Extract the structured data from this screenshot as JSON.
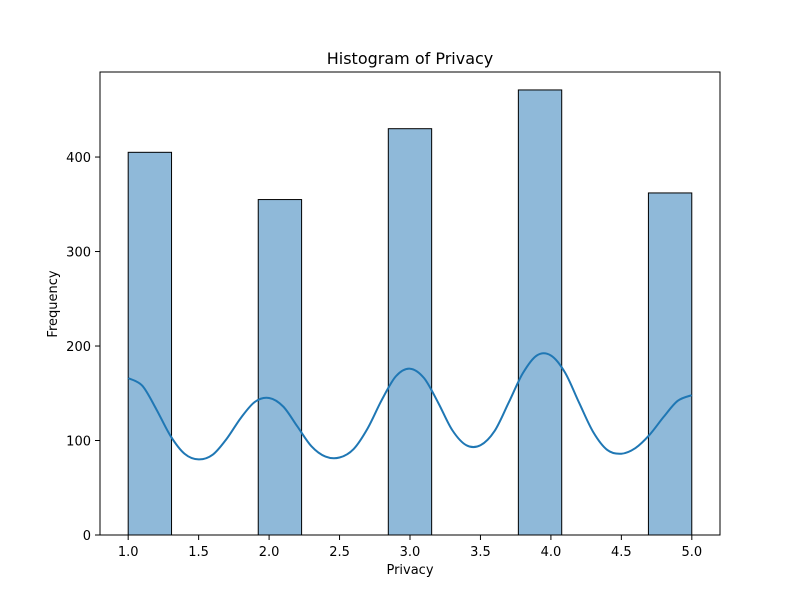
{
  "chart_data": {
    "type": "bar",
    "title": "Histogram of Privacy",
    "xlabel": "Privacy",
    "ylabel": "Frequency",
    "xlim": [
      0.8,
      5.2
    ],
    "ylim": [
      0,
      490
    ],
    "xticks": [
      "1.0",
      "1.5",
      "2.0",
      "2.5",
      "3.0",
      "3.5",
      "4.0",
      "4.5",
      "5.0"
    ],
    "yticks": [
      "0",
      "100",
      "200",
      "300",
      "400"
    ],
    "bin_width": 0.3077,
    "bins": [
      {
        "start": 1.0,
        "value": 405
      },
      {
        "start": 1.923,
        "value": 355
      },
      {
        "start": 2.846,
        "value": 430
      },
      {
        "start": 3.769,
        "value": 471
      },
      {
        "start": 4.692,
        "value": 362
      }
    ],
    "kde": {
      "x": [
        1.0,
        1.1,
        1.2,
        1.3,
        1.4,
        1.5,
        1.6,
        1.7,
        1.8,
        1.9,
        2.0,
        2.1,
        2.2,
        2.3,
        2.4,
        2.5,
        2.6,
        2.7,
        2.8,
        2.9,
        3.0,
        3.1,
        3.2,
        3.3,
        3.4,
        3.5,
        3.6,
        3.7,
        3.8,
        3.9,
        4.0,
        4.1,
        4.2,
        4.3,
        4.4,
        4.5,
        4.6,
        4.7,
        4.8,
        4.9,
        5.0
      ],
      "y": [
        166,
        158,
        133,
        105,
        86,
        80,
        85,
        102,
        124,
        141,
        145,
        136,
        115,
        94,
        83,
        82,
        91,
        113,
        143,
        168,
        176,
        166,
        140,
        111,
        95,
        95,
        110,
        140,
        171,
        190,
        190,
        172,
        140,
        109,
        90,
        86,
        92,
        106,
        125,
        142,
        148
      ]
    },
    "colors": {
      "bar_fill": "#8fb9d9",
      "bar_edge": "#000000",
      "kde_line": "#1f77b4"
    },
    "grid": false
  }
}
